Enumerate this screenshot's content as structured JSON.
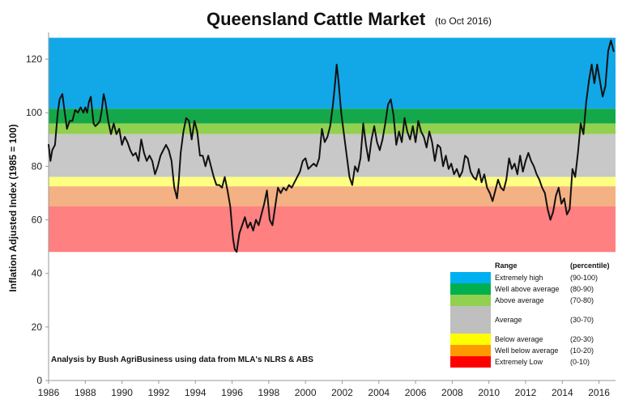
{
  "chart_data": {
    "type": "line",
    "title": "Queensland Cattle Market",
    "subtitle": "(to Oct 2016)",
    "xlabel": "",
    "ylabel": "Inflation Adjusted Index (1985 = 100)",
    "xlim": [
      1986,
      2016.9
    ],
    "ylim": [
      0,
      130
    ],
    "x_ticks": [
      "1986",
      "1988",
      "1990",
      "1992",
      "1994",
      "1996",
      "1998",
      "2000",
      "2002",
      "2004",
      "2006",
      "2008",
      "2010",
      "2012",
      "2014",
      "2016"
    ],
    "y_ticks": [
      "0",
      "20",
      "40",
      "60",
      "80",
      "100",
      "120"
    ],
    "grid": false,
    "annotation": "Analysis by Bush AgriBusiness using data from MLA's NLRS & ABS",
    "bands": [
      {
        "label": "Extremely high",
        "percentile": "(90-100)",
        "from": 101.5,
        "to": 128,
        "color": "#12a8e8"
      },
      {
        "label": "Well above average",
        "percentile": "(80-90)",
        "from": 96,
        "to": 101.5,
        "color": "#14a84a"
      },
      {
        "label": "Above average",
        "percentile": "(70-80)",
        "from": 92,
        "to": 96,
        "color": "#92d050"
      },
      {
        "label": "Average",
        "percentile": "(30-70)",
        "from": 76,
        "to": 92,
        "color": "#c8c8c8"
      },
      {
        "label": "Below average",
        "percentile": "(20-30)",
        "from": 72.5,
        "to": 76,
        "color": "#ffff80"
      },
      {
        "label": "Well below average",
        "percentile": "(10-20)",
        "from": 65,
        "to": 72.5,
        "color": "#f4b183"
      },
      {
        "label": "Extremely Low",
        "percentile": "(0-10)",
        "from": 48,
        "to": 65,
        "color": "#ff8080"
      }
    ],
    "legend": {
      "position": "bottom-right",
      "header_range": "Range",
      "header_percentile": "(percentile)",
      "swatch_colors": [
        "#00b0f0",
        "#00b050",
        "#92d050",
        "#bfbfbf",
        "#ffff00",
        "#ff9900",
        "#ff0000"
      ]
    },
    "series": [
      {
        "color": "#111111",
        "x": [
          1986.0,
          1986.1,
          1986.2,
          1986.35,
          1986.5,
          1986.6,
          1986.75,
          1986.9,
          1987.0,
          1987.15,
          1987.3,
          1987.45,
          1987.6,
          1987.75,
          1987.9,
          1988.0,
          1988.1,
          1988.2,
          1988.3,
          1988.45,
          1988.55,
          1988.7,
          1988.8,
          1988.9,
          1989.0,
          1989.1,
          1989.25,
          1989.4,
          1989.55,
          1989.7,
          1989.85,
          1990.0,
          1990.15,
          1990.3,
          1990.45,
          1990.6,
          1990.75,
          1990.9,
          1991.05,
          1991.2,
          1991.35,
          1991.5,
          1991.65,
          1991.8,
          1991.95,
          1992.1,
          1992.25,
          1992.4,
          1992.55,
          1992.7,
          1992.85,
          1993.0,
          1993.1,
          1993.2,
          1993.35,
          1993.5,
          1993.65,
          1993.8,
          1993.95,
          1994.1,
          1994.25,
          1994.4,
          1994.55,
          1994.7,
          1994.85,
          1995.0,
          1995.15,
          1995.3,
          1995.45,
          1995.6,
          1995.75,
          1995.9,
          1996.05,
          1996.15,
          1996.25,
          1996.4,
          1996.55,
          1996.7,
          1996.85,
          1997.0,
          1997.15,
          1997.3,
          1997.45,
          1997.6,
          1997.75,
          1997.9,
          1998.05,
          1998.2,
          1998.35,
          1998.5,
          1998.65,
          1998.8,
          1998.95,
          1999.1,
          1999.25,
          1999.4,
          1999.55,
          1999.7,
          1999.85,
          2000.0,
          2000.15,
          2000.3,
          2000.45,
          2000.6,
          2000.75,
          2000.9,
          2001.05,
          2001.2,
          2001.35,
          2001.5,
          2001.6,
          2001.7,
          2001.8,
          2001.95,
          2002.1,
          2002.25,
          2002.4,
          2002.55,
          2002.7,
          2002.85,
          2003.0,
          2003.15,
          2003.3,
          2003.45,
          2003.6,
          2003.75,
          2003.9,
          2004.05,
          2004.2,
          2004.35,
          2004.5,
          2004.65,
          2004.8,
          2004.95,
          2005.1,
          2005.25,
          2005.4,
          2005.55,
          2005.7,
          2005.85,
          2006.0,
          2006.15,
          2006.3,
          2006.45,
          2006.6,
          2006.75,
          2006.9,
          2007.05,
          2007.2,
          2007.35,
          2007.5,
          2007.65,
          2007.8,
          2007.95,
          2008.1,
          2008.25,
          2008.4,
          2008.55,
          2008.7,
          2008.85,
          2009.0,
          2009.15,
          2009.3,
          2009.45,
          2009.6,
          2009.75,
          2009.9,
          2010.05,
          2010.2,
          2010.35,
          2010.5,
          2010.65,
          2010.8,
          2010.95,
          2011.1,
          2011.25,
          2011.4,
          2011.55,
          2011.7,
          2011.85,
          2012.0,
          2012.15,
          2012.3,
          2012.45,
          2012.6,
          2012.75,
          2012.9,
          2013.05,
          2013.2,
          2013.35,
          2013.5,
          2013.65,
          2013.8,
          2013.95,
          2014.1,
          2014.25,
          2014.4,
          2014.55,
          2014.7,
          2014.85,
          2015.0,
          2015.15,
          2015.3,
          2015.45,
          2015.6,
          2015.75,
          2015.9,
          2016.05,
          2016.2,
          2016.35,
          2016.5,
          2016.65,
          2016.8
        ],
        "y": [
          88,
          82,
          86,
          88,
          100,
          105,
          107,
          99,
          94,
          97,
          97,
          101,
          100,
          102,
          100,
          102,
          100,
          104,
          106,
          96,
          95,
          96,
          97,
          101,
          107,
          104,
          97,
          92,
          96,
          92,
          94,
          88,
          91,
          89,
          86,
          84,
          85,
          82,
          90,
          85,
          82,
          84,
          82,
          77,
          80,
          84,
          86,
          88,
          86,
          82,
          72,
          68,
          75,
          85,
          93,
          98,
          97,
          90,
          97,
          93,
          84,
          84,
          80,
          84,
          80,
          76,
          73,
          73,
          72,
          76,
          71,
          65,
          53,
          49,
          48,
          55,
          58,
          61,
          57,
          59,
          56,
          60,
          58,
          62,
          66,
          71,
          60,
          58,
          65,
          72,
          70,
          72,
          71,
          73,
          72,
          74,
          76,
          78,
          82,
          83,
          79,
          80,
          81,
          80,
          83,
          94,
          89,
          91,
          95,
          103,
          110,
          118,
          112,
          100,
          92,
          84,
          76,
          73,
          80,
          78,
          83,
          96,
          88,
          82,
          90,
          95,
          89,
          86,
          90,
          96,
          103,
          105,
          99,
          88,
          93,
          89,
          98,
          93,
          90,
          95,
          89,
          97,
          93,
          91,
          87,
          93,
          89,
          82,
          88,
          87,
          80,
          84,
          79,
          81,
          77,
          79,
          76,
          78,
          84,
          83,
          78,
          76,
          75,
          79,
          74,
          77,
          72,
          70,
          67,
          71,
          75,
          72,
          71,
          75,
          83,
          79,
          81,
          77,
          84,
          78,
          82,
          85,
          82,
          80,
          77,
          75,
          72,
          70,
          64,
          60,
          63,
          69,
          72,
          66,
          68,
          62,
          64,
          79,
          76,
          85,
          96,
          92,
          104,
          112,
          118,
          111,
          118,
          112,
          106,
          110,
          123,
          127,
          123
        ]
      }
    ]
  }
}
